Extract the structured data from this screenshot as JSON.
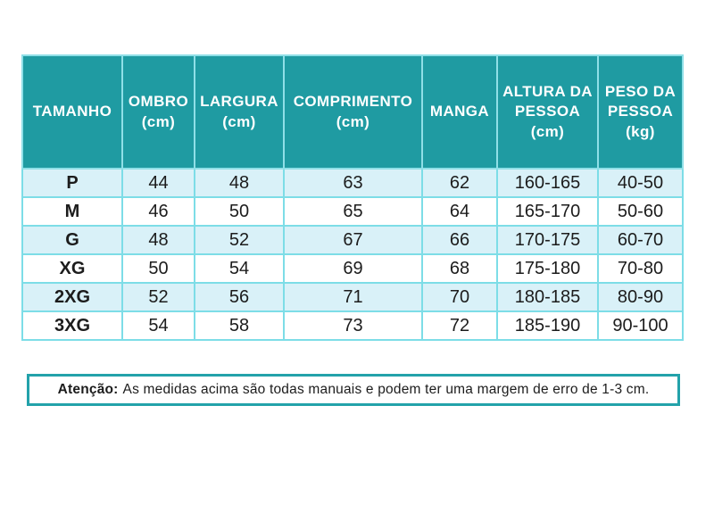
{
  "table": {
    "headers": [
      {
        "label": "TAMANHO",
        "unit": ""
      },
      {
        "label": "OMBRO",
        "unit": "(cm)"
      },
      {
        "label": "LARGURA",
        "unit": "(cm)"
      },
      {
        "label": "COMPRIMENTO",
        "unit": "(cm)"
      },
      {
        "label": "MANGA",
        "unit": ""
      },
      {
        "label": "ALTURA DA PESSOA",
        "unit": "(cm)"
      },
      {
        "label": "PESO DA PESSOA",
        "unit": "(kg)"
      }
    ],
    "rows": [
      {
        "size": "P",
        "values": [
          "44",
          "48",
          "63",
          "62",
          "160-165",
          "40-50"
        ]
      },
      {
        "size": "M",
        "values": [
          "46",
          "50",
          "65",
          "64",
          "165-170",
          "50-60"
        ]
      },
      {
        "size": "G",
        "values": [
          "48",
          "52",
          "67",
          "66",
          "170-175",
          "60-70"
        ]
      },
      {
        "size": "XG",
        "values": [
          "50",
          "54",
          "69",
          "68",
          "175-180",
          "70-80"
        ]
      },
      {
        "size": "2XG",
        "values": [
          "52",
          "56",
          "71",
          "70",
          "180-185",
          "80-90"
        ]
      },
      {
        "size": "3XG",
        "values": [
          "54",
          "58",
          "73",
          "72",
          "185-190",
          "90-100"
        ]
      }
    ]
  },
  "note": {
    "label": "Atenção:",
    "text": "As medidas acima são todas manuais e podem ter uma margem de erro de 1-3 cm."
  },
  "colors": {
    "header_teal": "#1f9ba2",
    "stripe_blue": "#d9f1f8",
    "cell_border": "#7ddde7",
    "note_border": "#23a2aa",
    "text": "#1c1c1c"
  }
}
